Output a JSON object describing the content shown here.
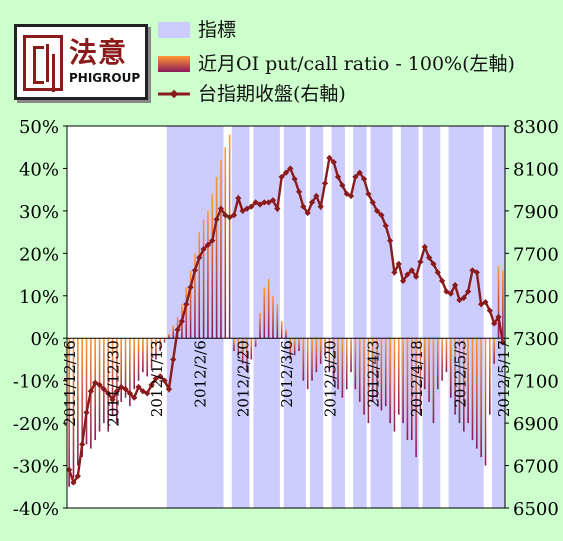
{
  "logo": {
    "cn": "法意",
    "en": "PHIGROUP"
  },
  "legend": [
    {
      "label": "指標",
      "kind": "band",
      "color": "#ccccff"
    },
    {
      "label": "近月OI put/call ratio - 100%(左軸)",
      "kind": "bar",
      "color": "#ff9933"
    },
    {
      "label": "台指期收盤(右軸)",
      "kind": "line",
      "color": "#8b1a1a"
    }
  ],
  "chart_data": {
    "type": "bar",
    "x_tick_labels": [
      "2011/12/16",
      "2011/12/30",
      "2012/1/13",
      "2012/2/6",
      "2012/2/20",
      "2012/3/6",
      "2012/3/20",
      "2012/4/3",
      "2012/4/18",
      "2012/5/3",
      "2012/5/17"
    ],
    "x_tick_index": [
      0,
      10,
      20,
      30,
      40,
      50,
      60,
      70,
      80,
      90,
      100
    ],
    "n_sessions": 101,
    "y_left": {
      "ylim": [
        -40,
        50
      ],
      "ticks": [
        "50%",
        "40%",
        "30%",
        "20%",
        "10%",
        "0%",
        "-10%",
        "-20%",
        "-30%",
        "-40%"
      ]
    },
    "y_right": {
      "ylim": [
        6500,
        8300
      ],
      "ticks": [
        "8300",
        "8100",
        "7900",
        "7700",
        "7500",
        "7300",
        "7100",
        "6900",
        "6700",
        "6500"
      ]
    },
    "indicator_band": [
      0,
      0,
      0,
      0,
      0,
      0,
      0,
      0,
      0,
      0,
      0,
      0,
      0,
      0,
      0,
      0,
      0,
      0,
      0,
      0,
      0,
      0,
      0,
      1,
      1,
      1,
      1,
      1,
      1,
      1,
      1,
      1,
      1,
      1,
      1,
      1,
      0,
      0,
      1,
      1,
      1,
      1,
      0,
      1,
      1,
      1,
      1,
      1,
      1,
      0,
      1,
      1,
      1,
      1,
      1,
      0,
      1,
      1,
      1,
      0,
      0,
      1,
      1,
      1,
      0,
      0,
      1,
      1,
      1,
      0,
      1,
      1,
      1,
      1,
      1,
      0,
      0,
      1,
      1,
      1,
      1,
      0,
      1,
      1,
      1,
      1,
      0,
      0,
      1,
      1,
      1,
      1,
      1,
      1,
      1,
      1,
      0,
      0,
      1,
      1,
      1
    ],
    "series": [
      {
        "name": "近月OI put/call ratio - 100%(左軸)",
        "axis": "left",
        "values": [
          -35,
          -33,
          -30,
          -28,
          -25,
          -26,
          -24,
          -22,
          -20,
          -22,
          -18,
          -20,
          -15,
          -14,
          -16,
          -12,
          -10,
          -8,
          -9,
          -7,
          -5,
          -3,
          -1,
          1,
          3,
          5,
          8,
          12,
          16,
          20,
          25,
          28,
          30,
          34,
          38,
          42,
          45,
          48,
          -3,
          -4,
          -6,
          -8,
          -5,
          -2,
          6,
          12,
          14,
          10,
          8,
          4,
          2,
          -5,
          -4,
          -3,
          -10,
          -12,
          -10,
          -8,
          -6,
          -4,
          -8,
          -10,
          -12,
          -14,
          -12,
          -8,
          -12,
          -15,
          -18,
          -20,
          -15,
          -14,
          -17,
          -16,
          -20,
          -22,
          -18,
          -20,
          -24,
          -24,
          -28,
          -18,
          -12,
          -15,
          -20,
          -12,
          -10,
          -8,
          -14,
          -18,
          -20,
          -22,
          -20,
          -24,
          -26,
          -28,
          -30,
          -18,
          -6,
          17,
          16
        ]
      },
      {
        "name": "台指期收盤(右軸)",
        "axis": "right",
        "values": [
          6680,
          6620,
          6650,
          6800,
          6950,
          7050,
          7090,
          7080,
          7060,
          7040,
          7010,
          7050,
          7070,
          7060,
          7040,
          7020,
          7070,
          7050,
          7040,
          7080,
          7110,
          7120,
          7100,
          7060,
          7200,
          7340,
          7380,
          7460,
          7540,
          7620,
          7680,
          7720,
          7740,
          7760,
          7860,
          7910,
          7880,
          7870,
          7880,
          7960,
          7900,
          7910,
          7920,
          7940,
          7930,
          7940,
          7940,
          7950,
          7910,
          8060,
          8080,
          8100,
          8050,
          7990,
          7920,
          7890,
          7940,
          7970,
          7920,
          8030,
          8150,
          8130,
          8060,
          8020,
          7980,
          7970,
          8060,
          8080,
          8050,
          7980,
          7940,
          7900,
          7880,
          7830,
          7760,
          7610,
          7650,
          7570,
          7600,
          7620,
          7590,
          7660,
          7730,
          7680,
          7650,
          7610,
          7570,
          7520,
          7510,
          7550,
          7480,
          7490,
          7520,
          7620,
          7610,
          7460,
          7470,
          7430,
          7370,
          7400,
          7280
        ]
      }
    ]
  }
}
